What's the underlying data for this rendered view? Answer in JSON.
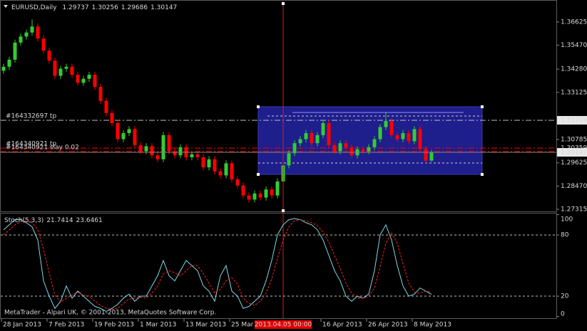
{
  "chart_data": [
    {
      "type": "candlestick",
      "title": "EURUSD,Daily",
      "categories": [
        "28 Jan 2013",
        null,
        null,
        null,
        null,
        null,
        null,
        null,
        "7 Feb 2013",
        null,
        null,
        null,
        null,
        null,
        null,
        null,
        "19 Feb 2013",
        null,
        null,
        null,
        null,
        null,
        null,
        null,
        "1 Mar 2013",
        null,
        null,
        null,
        null,
        null,
        null,
        null,
        "13 Mar 2013",
        null,
        null,
        null,
        null,
        null,
        null,
        null,
        "25 Mar 2013",
        null,
        null,
        null,
        null,
        null,
        null,
        null,
        null,
        "2013.04.05 00:00",
        null,
        null,
        null,
        null,
        null,
        null,
        "16 Apr 2013",
        null,
        null,
        null,
        null,
        null,
        null,
        null,
        "26 Apr 2013",
        null,
        null,
        null,
        null,
        null,
        null,
        null,
        "8 May 2013",
        null,
        null,
        null
      ],
      "cursor_index": 49,
      "open": [
        1.342,
        1.344,
        1.3475,
        1.356,
        1.359,
        1.361,
        1.364,
        1.358,
        1.352,
        1.347,
        1.3395,
        1.343,
        1.344,
        1.34,
        1.336,
        1.338,
        1.34,
        1.334,
        1.327,
        1.321,
        1.316,
        1.308,
        1.311,
        1.313,
        1.305,
        1.302,
        1.3045,
        1.3,
        1.298,
        1.31,
        1.302,
        1.3,
        1.304,
        1.299,
        1.3005,
        1.299,
        1.294,
        1.298,
        1.292,
        1.29,
        1.296,
        1.288,
        1.285,
        1.28,
        1.278,
        1.281,
        1.279,
        1.283,
        1.28,
        1.287,
        1.295,
        1.301,
        1.306,
        1.308,
        1.311,
        1.306,
        1.31,
        1.316,
        1.305,
        1.302,
        1.306,
        1.304,
        1.3,
        1.303,
        1.302,
        1.304,
        1.308,
        1.314,
        1.317,
        1.31,
        1.308,
        1.311,
        1.307,
        1.313,
        1.303,
        1.29737
      ],
      "high": [
        1.3455,
        1.349,
        1.3575,
        1.3605,
        1.3625,
        1.3675,
        1.3655,
        1.3595,
        1.3535,
        1.3485,
        1.3445,
        1.3455,
        1.3455,
        1.3415,
        1.3395,
        1.3415,
        1.3415,
        1.3355,
        1.3285,
        1.3225,
        1.3175,
        1.3125,
        1.3145,
        1.3145,
        1.3065,
        1.306,
        1.306,
        1.3015,
        1.3115,
        1.3115,
        1.3035,
        1.3055,
        1.3055,
        1.302,
        1.302,
        1.3005,
        1.2995,
        1.2995,
        1.2935,
        1.2975,
        1.2975,
        1.2895,
        1.2865,
        1.2815,
        1.2825,
        1.2825,
        1.2845,
        1.2845,
        1.2885,
        1.2965,
        1.3025,
        1.3075,
        1.3095,
        1.3125,
        1.3125,
        1.3115,
        1.3175,
        1.3175,
        1.3065,
        1.3075,
        1.3075,
        1.3055,
        1.3045,
        1.3045,
        1.3055,
        1.3095,
        1.3155,
        1.3215,
        1.3185,
        1.3115,
        1.3125,
        1.3125,
        1.3145,
        1.3145,
        1.3045,
        1.30256
      ],
      "low": [
        1.3405,
        1.3425,
        1.346,
        1.3545,
        1.3575,
        1.3595,
        1.3565,
        1.3505,
        1.3455,
        1.338,
        1.338,
        1.3415,
        1.3385,
        1.3345,
        1.3345,
        1.3365,
        1.3325,
        1.3255,
        1.3195,
        1.3145,
        1.3065,
        1.3065,
        1.3095,
        1.3035,
        1.3005,
        1.3005,
        1.2985,
        1.2965,
        1.2965,
        1.3005,
        1.2985,
        1.2985,
        1.2975,
        1.2975,
        1.2975,
        1.2925,
        1.2925,
        1.2905,
        1.2885,
        1.2885,
        1.2865,
        1.2835,
        1.2785,
        1.2765,
        1.2765,
        1.2775,
        1.2775,
        1.2785,
        1.2785,
        1.2855,
        1.2935,
        1.2995,
        1.3045,
        1.3065,
        1.3045,
        1.3045,
        1.3085,
        1.3035,
        1.3005,
        1.3005,
        1.3025,
        1.2985,
        1.2985,
        1.3005,
        1.3005,
        1.3025,
        1.3065,
        1.3125,
        1.3085,
        1.3065,
        1.3065,
        1.3055,
        1.3055,
        1.3015,
        1.296,
        1.29686
      ],
      "close": [
        1.344,
        1.3475,
        1.356,
        1.359,
        1.361,
        1.364,
        1.358,
        1.352,
        1.347,
        1.3395,
        1.343,
        1.344,
        1.34,
        1.336,
        1.338,
        1.34,
        1.334,
        1.327,
        1.321,
        1.316,
        1.308,
        1.311,
        1.313,
        1.305,
        1.302,
        1.3045,
        1.3,
        1.298,
        1.31,
        1.302,
        1.3,
        1.304,
        1.299,
        1.3005,
        1.299,
        1.294,
        1.298,
        1.292,
        1.29,
        1.296,
        1.288,
        1.285,
        1.28,
        1.278,
        1.281,
        1.279,
        1.283,
        1.28,
        1.287,
        1.295,
        1.301,
        1.306,
        1.308,
        1.311,
        1.306,
        1.31,
        1.316,
        1.305,
        1.302,
        1.306,
        1.304,
        1.3,
        1.303,
        1.302,
        1.304,
        1.308,
        1.314,
        1.317,
        1.31,
        1.308,
        1.311,
        1.307,
        1.313,
        1.303,
        1.29737,
        1.30147
      ],
      "up_color": "#32cd32",
      "down_color": "#ff0000",
      "ylim": [
        1.2721,
        1.3761
      ],
      "yticks": [
        1.36625,
        {
          "value": 1.3547,
          "label": "1.35470"
        },
        {
          "value": 1.3428,
          "label": "1.34280"
        },
        1.33125,
        1.30785,
        1.29625,
        {
          "value": 1.2847,
          "label": "1.28470"
        },
        1.27315
      ],
      "annotations": [
        {
          "text": "#164332697 tp",
          "value": 1.31739,
          "color": "#c0c0c0"
        },
        {
          "text": "#164340921 tp",
          "value": 1.30359,
          "color": "#ff0000"
        },
        {
          "text": "#164340921 slay 0.02",
          "value": 1.3018,
          "color": "#ff0000"
        }
      ]
    },
    {
      "type": "line",
      "title": "Stoch(5,3,3)",
      "series": [
        {
          "color": "#7fd8e8",
          "dash": false,
          "values": [
            85,
            90,
            95,
            95,
            92,
            88,
            75,
            35,
            20,
            8,
            15,
            30,
            18,
            25,
            20,
            15,
            10,
            8,
            5,
            8,
            12,
            18,
            22,
            15,
            20,
            20,
            30,
            40,
            55,
            40,
            35,
            45,
            55,
            50,
            45,
            30,
            25,
            15,
            40,
            50,
            25,
            20,
            8,
            10,
            15,
            20,
            35,
            55,
            80,
            90,
            95,
            96,
            95,
            92,
            90,
            85,
            75,
            60,
            45,
            35,
            20,
            15,
            20,
            18,
            22,
            45,
            80,
            90,
            75,
            50,
            30,
            20,
            22,
            28,
            25,
            21.7414
          ]
        },
        {
          "color": "#ff2020",
          "dash": true,
          "values": [
            80,
            85,
            90,
            93,
            94,
            92,
            85,
            66,
            43,
            21,
            14,
            18,
            21,
            24,
            21,
            20,
            15,
            11,
            8,
            7,
            8,
            13,
            17,
            18,
            19,
            18,
            23,
            30,
            42,
            45,
            43,
            40,
            45,
            50,
            50,
            42,
            33,
            23,
            27,
            35,
            38,
            32,
            18,
            13,
            11,
            15,
            23,
            37,
            57,
            75,
            88,
            94,
            95,
            94,
            92,
            89,
            83,
            73,
            60,
            47,
            33,
            23,
            18,
            18,
            20,
            28,
            49,
            72,
            82,
            72,
            52,
            33,
            24,
            23,
            25,
            23.6461
          ]
        }
      ],
      "ylim": [
        -1.6,
        101
      ],
      "yticks": [
        100,
        80,
        20,
        0
      ],
      "levels": [
        80,
        20
      ]
    }
  ],
  "footer": "MetaTrader - Alpari UK, © 2001-2013, MetaQuotes Software Corp."
}
